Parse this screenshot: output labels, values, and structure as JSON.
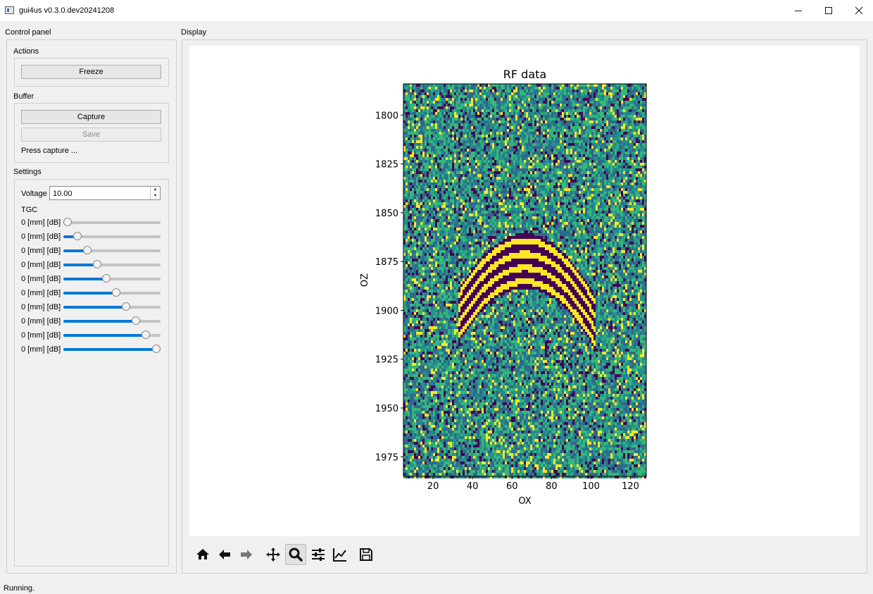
{
  "window": {
    "title": "gui4us v0.3.0.dev20241208"
  },
  "control_panel": {
    "title": "Control panel",
    "actions": {
      "title": "Actions",
      "freeze_label": "Freeze"
    },
    "buffer": {
      "title": "Buffer",
      "capture_label": "Capture",
      "save_label": "Save",
      "status": "Press capture ..."
    },
    "settings": {
      "title": "Settings",
      "voltage_label": "Voltage",
      "voltage_value": "10.00",
      "tgc_label": "TGC",
      "tgc_rows": [
        {
          "label": "0 [mm] [dB]",
          "level": 0.0
        },
        {
          "label": "0 [mm] [dB]",
          "level": 0.11
        },
        {
          "label": "0 [mm] [dB]",
          "level": 0.22
        },
        {
          "label": "0 [mm] [dB]",
          "level": 0.33
        },
        {
          "label": "0 [mm] [dB]",
          "level": 0.44
        },
        {
          "label": "0 [mm] [dB]",
          "level": 0.55
        },
        {
          "label": "0 [mm] [dB]",
          "level": 0.66
        },
        {
          "label": "0 [mm] [dB]",
          "level": 0.77
        },
        {
          "label": "0 [mm] [dB]",
          "level": 0.88
        },
        {
          "label": "0 [mm] [dB]",
          "level": 1.0
        }
      ]
    }
  },
  "display": {
    "title": "Display"
  },
  "chart_data": {
    "type": "heatmap",
    "title": "RF data",
    "xlabel": "OX",
    "ylabel": "OZ",
    "xlim": [
      5,
      128
    ],
    "ylim": [
      1985,
      1784
    ],
    "y_inverted": true,
    "xticks": [
      20,
      40,
      60,
      80,
      100,
      120
    ],
    "yticks": [
      1800,
      1825,
      1850,
      1875,
      1900,
      1925,
      1950,
      1975
    ],
    "colormap": "viridis",
    "colors": {
      "low": "#440154",
      "mid_low": "#31688e",
      "mid": "#35b779",
      "mid_high": "#21918c",
      "high": "#fde725"
    },
    "features": [
      {
        "kind": "hyperbolic-echo",
        "apex_x": 66,
        "apex_z": 1862,
        "band_offsets": [
          0,
          7,
          14,
          21
        ],
        "left_end_x": 34,
        "right_end_x": 100
      }
    ],
    "grid": false
  },
  "toolbar": {
    "items": [
      {
        "name": "home-icon"
      },
      {
        "name": "back-arrow-icon"
      },
      {
        "name": "forward-arrow-icon"
      },
      {
        "name": "pan-icon"
      },
      {
        "name": "zoom-icon",
        "active": true
      },
      {
        "name": "configure-subplots-icon"
      },
      {
        "name": "edit-axes-icon"
      },
      {
        "name": "save-figure-icon"
      }
    ]
  },
  "status_bar": {
    "text": "Running."
  }
}
